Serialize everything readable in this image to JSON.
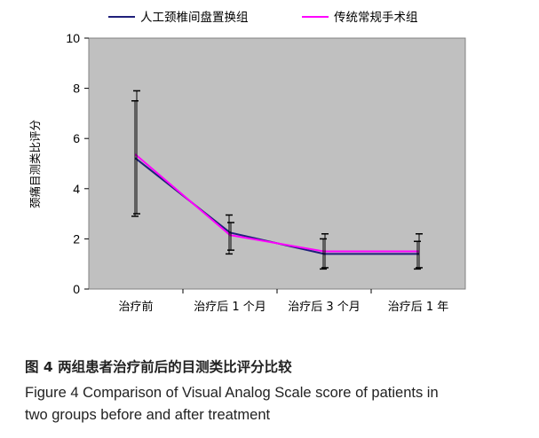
{
  "chart_data": {
    "type": "line",
    "categories": [
      "治疗前",
      "治疗后 1 个月",
      "治疗后 3 个月",
      "治疗后 1 年"
    ],
    "ylabel": "颈痛目测类比评分",
    "xlabel": "",
    "ylim": [
      0,
      10
    ],
    "yticks": [
      0,
      2,
      4,
      6,
      8,
      10
    ],
    "grid": false,
    "legend_position": "top",
    "plot_background": "#c0c0c0",
    "series": [
      {
        "name": "人工颈椎间盘置换组",
        "color": "#1f1f7a",
        "values": [
          5.2,
          2.25,
          1.4,
          1.4
        ],
        "error_low": [
          2.9,
          1.4,
          0.8,
          0.8
        ],
        "error_high": [
          7.5,
          2.95,
          2.0,
          1.9
        ]
      },
      {
        "name": "传统常规手术组",
        "color": "#ff00ff",
        "values": [
          5.35,
          2.15,
          1.5,
          1.5
        ],
        "error_low": [
          3.0,
          1.55,
          0.85,
          0.85
        ],
        "error_high": [
          7.9,
          2.65,
          2.2,
          2.2
        ]
      }
    ]
  },
  "caption": {
    "zh": "图 4   两组患者治疗前后的目测类比评分比较",
    "en_line1": "Figure 4   Comparison of Visual Analog Scale score of patients in",
    "en_line2": "two groups before and after treatment"
  }
}
